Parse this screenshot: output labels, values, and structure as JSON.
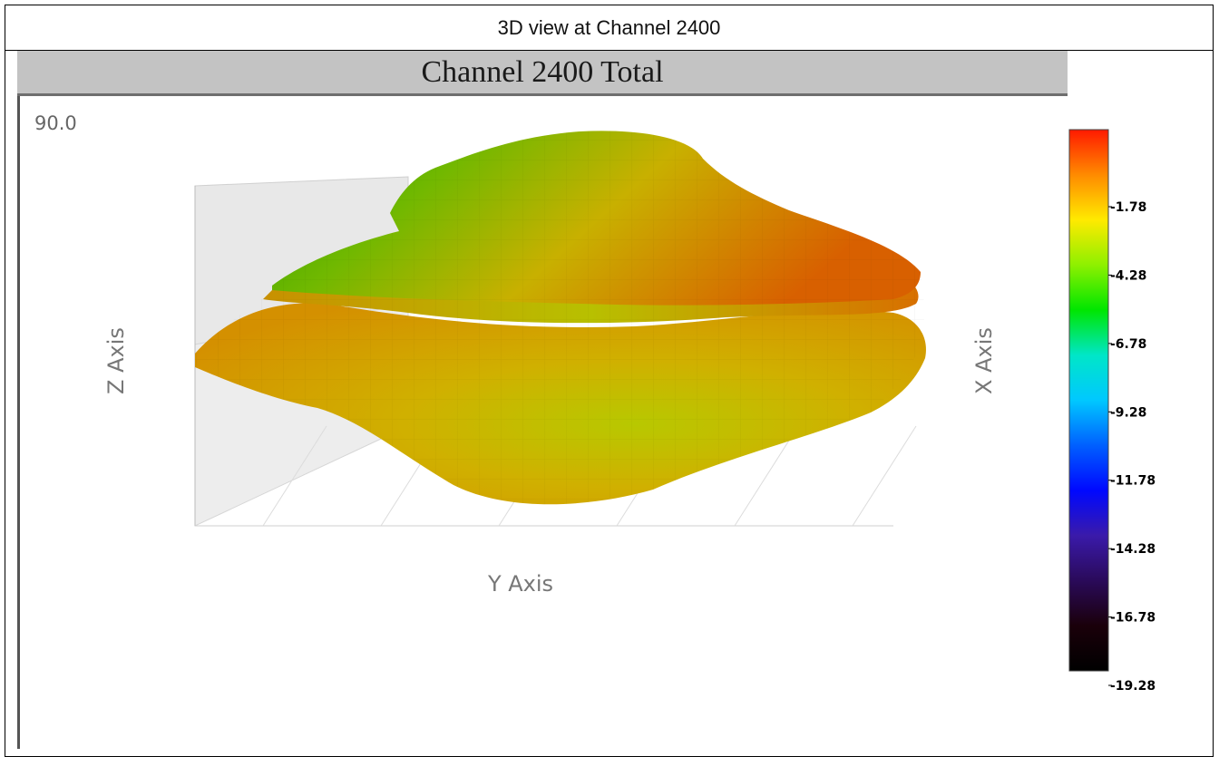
{
  "page": {
    "header": "3D view at Channel 2400",
    "rotation_readout": "90.0"
  },
  "chart_data": {
    "type": "surface3d",
    "title": "Channel 2400 Total",
    "xlabel": "X Axis",
    "ylabel": "Y Axis",
    "zlabel": "Z Axis",
    "view_angle": 90.0,
    "grid": true,
    "colorbar": {
      "position": "right",
      "colors": [
        "#ff1a00",
        "#ff8a00",
        "#ffea00",
        "#8ef000",
        "#00e600",
        "#00e6c8",
        "#00c8ff",
        "#0060ff",
        "#0008ff",
        "#3a1aaa",
        "#2a0a5a",
        "#1a000a",
        "#000000"
      ],
      "tick_labels": [
        "-1.78",
        "-4.28",
        "-6.78",
        "-9.28",
        "-11.78",
        "-14.28",
        "-16.78",
        "-19.28"
      ],
      "tick_values": [
        -1.78,
        -4.28,
        -6.78,
        -9.28,
        -11.78,
        -14.28,
        -16.78,
        -19.28
      ]
    },
    "surface": {
      "dominant_colors": [
        "#d8a000",
        "#c8c800",
        "#98c800",
        "#30a800",
        "#e06000"
      ]
    }
  }
}
